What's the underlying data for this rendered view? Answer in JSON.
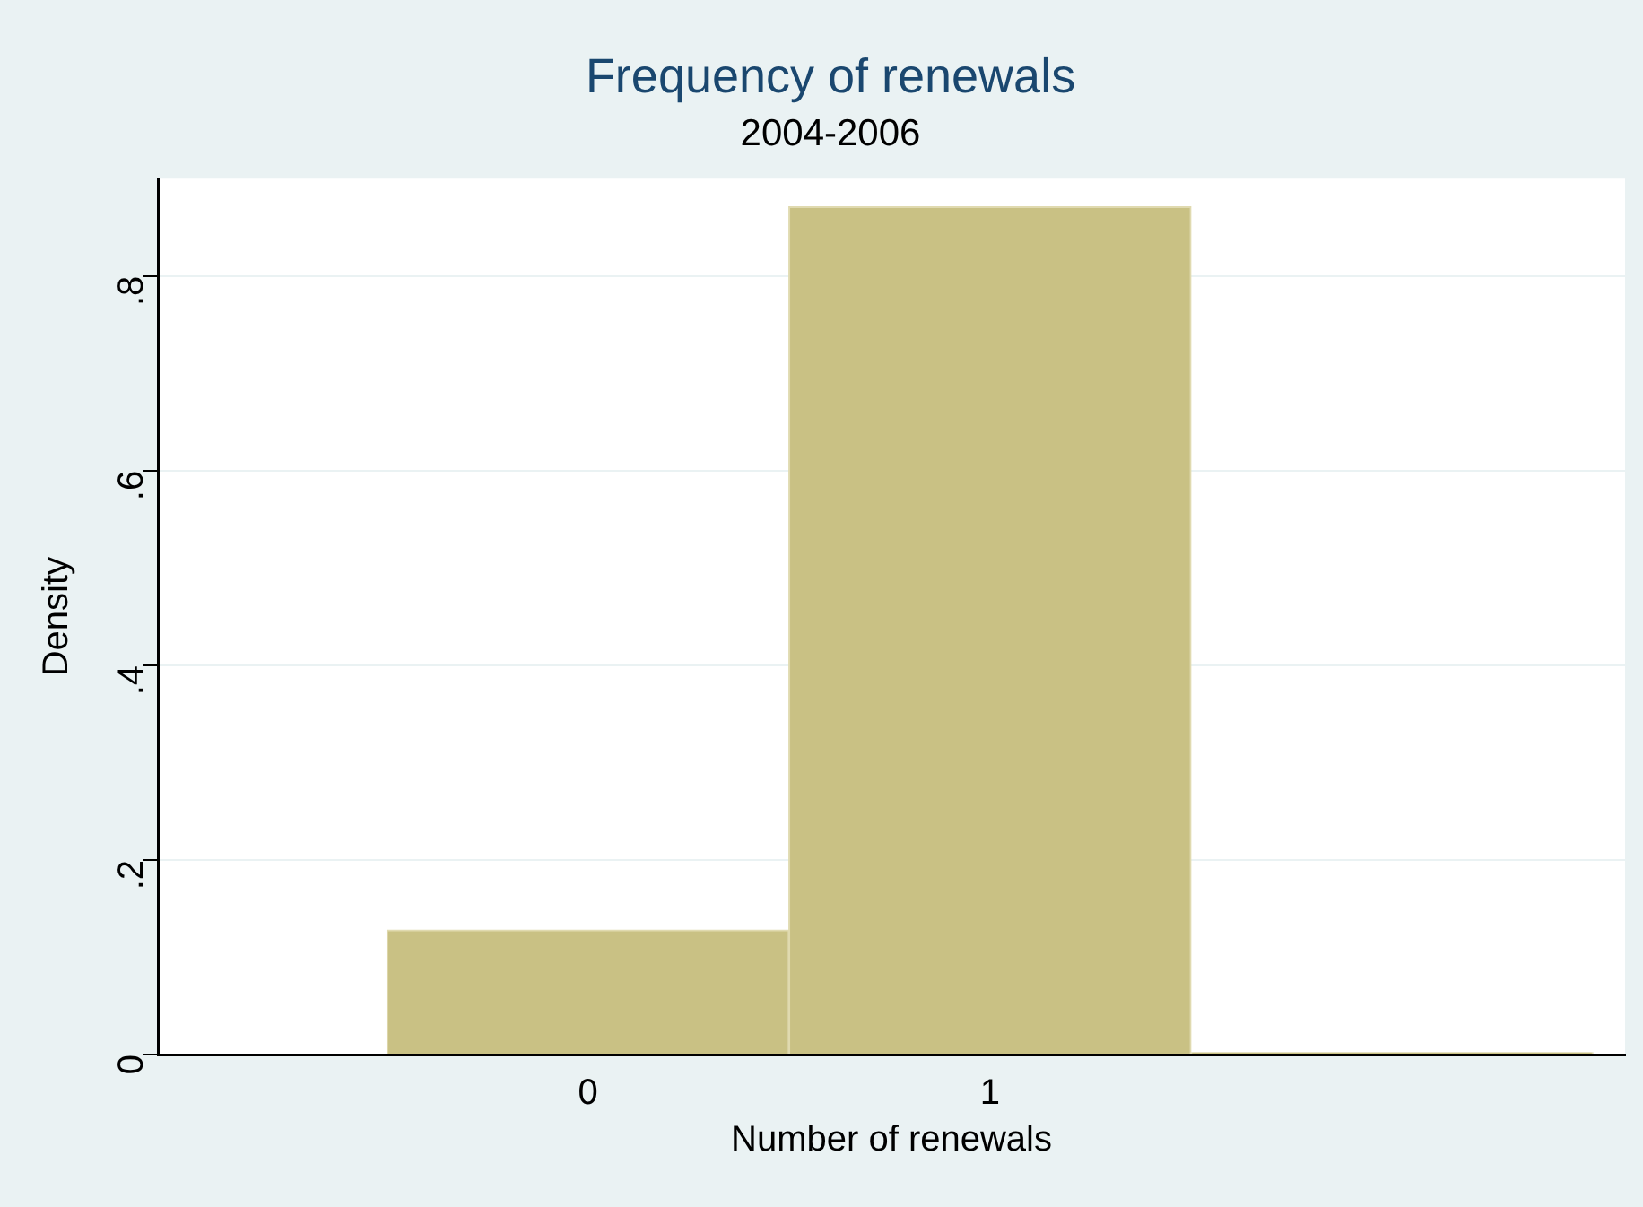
{
  "chart_data": {
    "type": "histogram",
    "title": "Frequency of renewals",
    "subtitle": "2004-2006",
    "xlabel": "Number of renewals",
    "ylabel": "Density",
    "bins": [
      -0.5,
      0.5,
      1.5,
      2.5
    ],
    "values": [
      0.128,
      0.871,
      0.002
    ],
    "color": "#c9c184",
    "xlim": [
      -1.07,
      2.58
    ],
    "xticks": [
      0,
      1
    ],
    "ylim": [
      0,
      0.9
    ],
    "yticks": [
      0,
      {
        "value": 0.2,
        "label": ".2"
      },
      {
        "value": 0.4,
        "label": ".4"
      },
      {
        "value": 0.6,
        "label": ".6"
      },
      {
        "value": 0.8,
        "label": ".8"
      }
    ],
    "grid": "y",
    "legend": false
  }
}
